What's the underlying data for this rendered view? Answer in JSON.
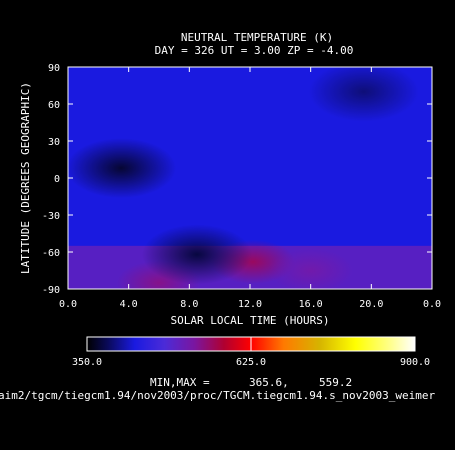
{
  "chart_data": {
    "type": "heatmap",
    "title": "NEUTRAL TEMPERATURE (K)",
    "subtitle": "DAY = 326   UT =   3.00   ZP =   -4.00",
    "xlabel": "SOLAR LOCAL TIME (HOURS)",
    "ylabel": "LATITUDE (DEGREES GEOGRAPHIC)",
    "xlim": [
      0.0,
      24.0
    ],
    "ylim": [
      -90,
      90
    ],
    "x_ticks": [
      "0.0",
      "4.0",
      "8.0",
      "12.0",
      "16.0",
      "20.0",
      "0.0"
    ],
    "x_tick_values": [
      0,
      4,
      8,
      12,
      16,
      20,
      24
    ],
    "y_ticks": [
      "90",
      "60",
      "30",
      "0",
      "-30",
      "-60",
      "-90"
    ],
    "y_tick_values": [
      90,
      60,
      30,
      0,
      -30,
      -60,
      -90
    ],
    "colorbar": {
      "min": 350.0,
      "max": 900.0,
      "labels": [
        "350.0",
        "625.0",
        "900.0"
      ],
      "label_values": [
        350,
        625,
        900
      ],
      "stops": [
        {
          "v": 350,
          "color": "#000000"
        },
        {
          "v": 385,
          "color": "#0a0a5a"
        },
        {
          "v": 430,
          "color": "#1a1ae0"
        },
        {
          "v": 480,
          "color": "#4b2bd8"
        },
        {
          "v": 530,
          "color": "#7a16a0"
        },
        {
          "v": 580,
          "color": "#b00030"
        },
        {
          "v": 625,
          "color": "#ff0000"
        },
        {
          "v": 680,
          "color": "#ff7a00"
        },
        {
          "v": 740,
          "color": "#d6b400"
        },
        {
          "v": 800,
          "color": "#ffff00"
        },
        {
          "v": 860,
          "color": "#ffff90"
        },
        {
          "v": 900,
          "color": "#ffffff"
        }
      ]
    },
    "minmax_label": "MIN,MAX =",
    "min_value": "365.6,",
    "max_value": "559.2",
    "field_features": {
      "background": 430,
      "cold_spots": [
        {
          "x": 3.5,
          "y": 8,
          "value": 370
        },
        {
          "x": 8.5,
          "y": -62,
          "value": 375
        },
        {
          "x": 19.5,
          "y": 70,
          "value": 395
        }
      ],
      "warm_spots": [
        {
          "x": 12.2,
          "y": -68,
          "value": 559
        },
        {
          "x": 6.0,
          "y": -85,
          "value": 540
        },
        {
          "x": 16.0,
          "y": -75,
          "value": 520
        }
      ]
    },
    "grid": false,
    "legend": "none"
  },
  "footer": {
    "path": "aim2/tgcm/tiegcm1.94/nov2003/proc/TGCM.tiegcm1.94.s_nov2003_weimer"
  }
}
